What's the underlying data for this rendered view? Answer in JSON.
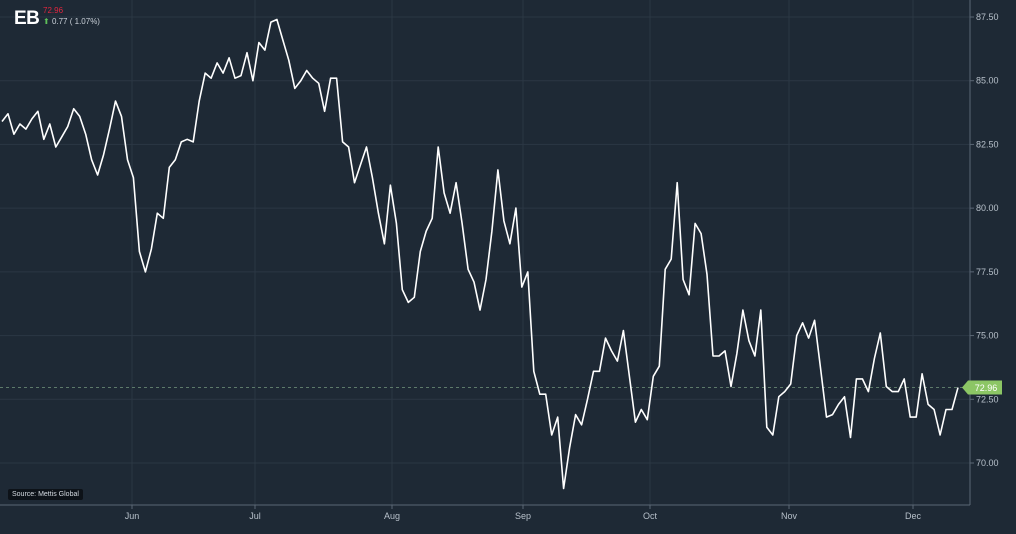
{
  "header": {
    "ticker": "EB",
    "price": "72.96",
    "change": "0.77 ( 1.07%)",
    "change_direction": "up"
  },
  "source_label": "Source: Mettis Global",
  "colors": {
    "background": "#1e2935",
    "line": "#ffffff",
    "grid": "#2b3744",
    "axis_text": "#b7c0ca",
    "last_price_tag": "#8cc665",
    "price_text": "#e0263f",
    "up_arrow": "#5fbf5a"
  },
  "chart_data": {
    "type": "line",
    "title": "",
    "xlabel": "",
    "ylabel": "",
    "ylim": [
      68.5,
      88.0
    ],
    "y_ticks": [
      70.0,
      72.5,
      75.0,
      77.5,
      80.0,
      82.5,
      85.0,
      87.5
    ],
    "y_tick_labels": [
      "70.00",
      "72.50",
      "75.00",
      "77.50",
      "80.00",
      "82.50",
      "85.00",
      "87.50"
    ],
    "x_tick_labels": [
      "Jun",
      "Jul",
      "Aug",
      "Sep",
      "Oct",
      "Nov",
      "Dec"
    ],
    "last_value_label": "72.96",
    "reference_line": 72.96,
    "grid": true,
    "axis_position": "right",
    "series": [
      {
        "values": [
          83.4,
          83.7,
          82.9,
          83.3,
          83.1,
          83.5,
          83.8,
          82.7,
          83.3,
          82.4,
          82.8,
          83.2,
          83.9,
          83.6,
          82.9,
          81.9,
          81.3,
          82.1,
          83.1,
          84.2,
          83.6,
          81.9,
          81.2,
          78.3,
          77.5,
          78.4,
          79.8,
          79.6,
          81.6,
          81.9,
          82.6,
          82.7,
          82.6,
          84.2,
          85.3,
          85.1,
          85.7,
          85.3,
          85.9,
          85.1,
          85.2,
          86.1,
          85.0,
          86.5,
          86.2,
          87.3,
          87.4,
          86.6,
          85.8,
          84.7,
          85.0,
          85.4,
          85.1,
          84.9,
          83.8,
          85.1,
          85.1,
          82.6,
          82.4,
          81.0,
          81.7,
          82.4,
          81.2,
          79.8,
          78.6,
          80.9,
          79.4,
          76.8,
          76.3,
          76.5,
          78.3,
          79.1,
          79.6,
          82.4,
          80.6,
          79.8,
          81.0,
          79.4,
          77.6,
          77.1,
          76.0,
          77.2,
          79.1,
          81.5,
          79.5,
          78.6,
          80.0,
          76.9,
          77.5,
          73.6,
          72.7,
          72.7,
          71.1,
          71.8,
          69.0,
          70.6,
          71.9,
          71.5,
          72.5,
          73.6,
          73.6,
          74.9,
          74.4,
          74.0,
          75.2,
          73.4,
          71.6,
          72.1,
          71.7,
          73.4,
          73.8,
          77.6,
          78.0,
          81.0,
          77.2,
          76.6,
          79.4,
          79.0,
          77.4,
          74.2,
          74.2,
          74.4,
          73.0,
          74.3,
          76.0,
          74.8,
          74.2,
          76.0,
          71.4,
          71.1,
          72.6,
          72.8,
          73.1,
          75.0,
          75.5,
          74.9,
          75.6,
          73.7,
          71.8,
          71.9,
          72.3,
          72.6,
          71.0,
          73.3,
          73.3,
          72.8,
          74.1,
          75.1,
          73.0,
          72.8,
          72.8,
          73.3,
          71.8,
          71.8,
          73.5,
          72.3,
          72.1,
          71.1,
          72.1,
          72.1,
          72.96
        ]
      }
    ]
  }
}
